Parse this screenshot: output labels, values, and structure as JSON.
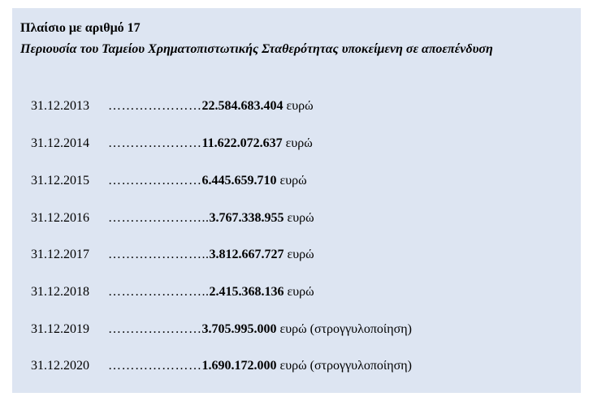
{
  "box": {
    "title": "Πλαίσιο με αριθμό 17",
    "subtitle": "Περιουσία του Ταμείου Χρηματοπιστωτικής Σταθερότητας υποκείμενη σε αποεπένδυση"
  },
  "rows": [
    {
      "date": "31.12.2013",
      "dots": " …………………",
      "amount": "22.584.683.404",
      "unit": "ευρώ"
    },
    {
      "date": "31.12.2014",
      "dots": " …………………",
      "amount": "11.622.072.637",
      "unit": "ευρώ"
    },
    {
      "date": "31.12.2015",
      "dots": " ………………… ",
      "amount": "6.445.659.710",
      "unit": "ευρώ"
    },
    {
      "date": "31.12.2016",
      "dots": "………………….. ",
      "amount": "3.767.338.955",
      "unit": "ευρώ"
    },
    {
      "date": "31.12.2017",
      "dots": "………………….. ",
      "amount": "3.812.667.727",
      "unit": "ευρώ"
    },
    {
      "date": "31.12.2018",
      "dots": "………………….. ",
      "amount": "2.415.368.136",
      "unit": "ευρώ"
    },
    {
      "date": "31.12.2019",
      "dots": "…………………  ",
      "amount": "3.705.995.000",
      "unit": "ευρώ (στρογγυλοποίηση)"
    },
    {
      "date": "31.12.2020",
      "dots": "…………………  ",
      "amount": "1.690.172.000",
      "unit": "ευρώ (στρογγυλοποίηση)"
    }
  ]
}
